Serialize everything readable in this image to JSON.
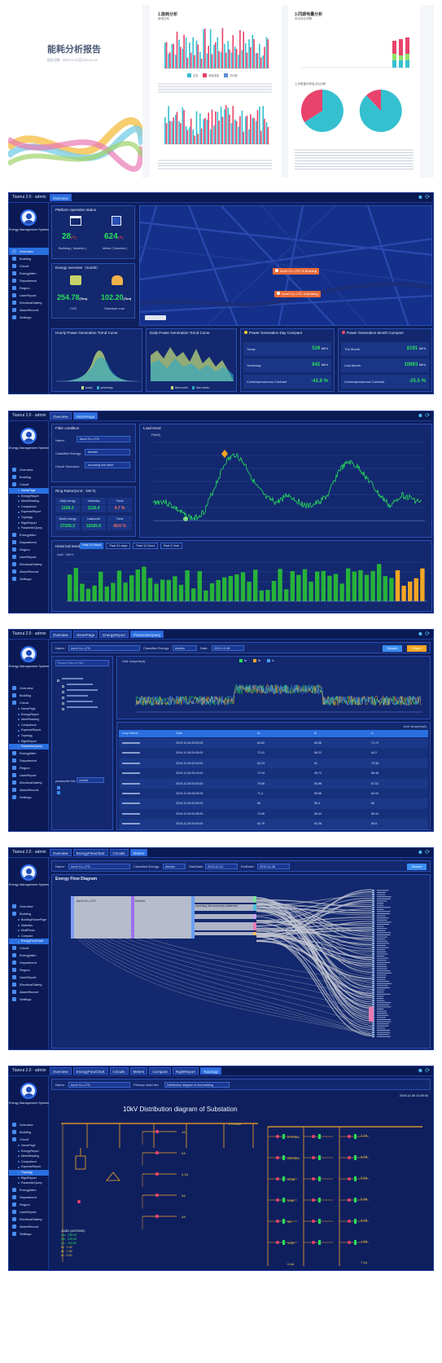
{
  "report": {
    "title": "能耗分析报告",
    "subtitle": "报告日期：2019-10-31至2019-10-31",
    "sec1_title": "1.能耗分析",
    "sec1_sub": "用电分布",
    "sec1_legend": [
      "正常",
      "峰值电量",
      "平均值"
    ],
    "sec3_title": "3.同期电量分析",
    "sec3_sub": "本月对比同期",
    "pie_title": "上月电量分析及占比分析"
  },
  "shell": {
    "brand": "Tianrui 2.0",
    "user": "admin",
    "system": "Energy Management System",
    "icons": [
      "user-icon",
      "refresh-icon"
    ]
  },
  "p1": {
    "tabs": [
      "Overview"
    ],
    "menu": [
      "Overview",
      "Building",
      "Circuit",
      "EnergyMen",
      "Department",
      "Region",
      "UserReport",
      "ElectricalSafety",
      "AlarmRecord",
      "Settings"
    ],
    "status_title": "Platform operation status",
    "building_val": "28",
    "building_unit": "(个)",
    "building_lbl": "Building ( Number )",
    "meter_val": "624",
    "meter_unit": "(个)",
    "meter_lbl": "Meter ( Number )",
    "overview_title": "Energy overview（month）",
    "co2_val": "254.78",
    "co2_unit": "(Ton)",
    "co2_lbl": "CO2",
    "coal_val": "102.20",
    "coal_unit": "(Ton)",
    "coal_lbl": "Standard coal",
    "map_markers": [
      "Acrel Co.,LTD. B Building",
      "Acrel Co.,LTD. A Building"
    ],
    "hourly_title": "Hourly Power Generation Trend Curve",
    "hourly_legend": [
      "today",
      "yesterday"
    ],
    "daily_title": "Daily Power Generation Trend Curve",
    "daily_legend": [
      "this month",
      "last month"
    ],
    "day_cmp_title": "Power Generation Day Compare",
    "month_cmp_title": "Power Generation Month Compare",
    "day_rows": [
      {
        "label": "Today",
        "value": "539",
        "unit": "kW·h"
      },
      {
        "label": "Yesterday",
        "value": "942",
        "unit": "kW·h"
      },
      {
        "label": "Contemporaneous Contrast",
        "value": "-42.8 %",
        "unit": ""
      }
    ],
    "month_rows": [
      {
        "label": "The Month",
        "value": "8191",
        "unit": "kW·h"
      },
      {
        "label": "Last Month",
        "value": "10993",
        "unit": "kW·h"
      },
      {
        "label": "Contemporaneous Contrast",
        "value": "-25.5 %",
        "unit": ""
      }
    ]
  },
  "p2": {
    "tabs": [
      "Overview",
      "HomePage"
    ],
    "menu_top": [
      "Overview",
      "Building",
      "Circuit"
    ],
    "menu_sub": [
      "HomePage",
      "EnergyReport",
      "MeterReading",
      "Comparison",
      "ExpenseReport",
      "Topology",
      "RightReport",
      "ParameterQuery"
    ],
    "menu_bottom": [
      "EnergyMen",
      "Department",
      "Region",
      "UserReport",
      "ElectricalSafety",
      "AlarmRecord",
      "Settings"
    ],
    "filter_title": "Filter condition",
    "name_label": "Name:",
    "name_value": "Acrel Co.,LTD.",
    "energy_label": "Classified Energy:",
    "energy_value": "electric",
    "circuit_label": "Circuit Selection:",
    "circuit_value": "incoming line table",
    "ring_title": "Ring Ration(Unit：kW·h)",
    "ring_head1": [
      "Daily energy",
      "Yesterday",
      "Trend"
    ],
    "ring_val1": [
      "1168.3",
      "1116.4",
      "4.7 %"
    ],
    "ring_head2": [
      "Month energy",
      "Lastmonth",
      "Trend"
    ],
    "ring_val2": [
      "27206.3",
      "18185.8",
      "49.6 %"
    ],
    "load_title": "Load trend",
    "load_unit": "P(kW)",
    "hist_tabs": [
      "Past 24 hours",
      "Past 31 days",
      "Past 12 Mont",
      "Past 3 Year"
    ],
    "hist_title": "Historical trend",
    "hist_unit": "Unit：kW·h"
  },
  "p3": {
    "tabs": [
      "Overview",
      "HomePage",
      "EnergyReport",
      "ParameterQuery"
    ],
    "name_label": "Name:",
    "name_value": "Acrel Co.,LTD.",
    "energy_label": "Classified Energy:",
    "energy_value": "electric",
    "date_label": "Date:",
    "date_value": "2019-12-06",
    "search_btn": "Search",
    "export_btn": "Export",
    "search_placeholder": "Please Enter A Filter",
    "param_label": "parameter list:",
    "param_value": "current",
    "chart_unit": "Unit: Ampere(A)",
    "legend": [
      "Ia",
      "Ib",
      "Ic"
    ],
    "table_unit": "Unit: Ampere(A)",
    "columns": [
      "Loop Name",
      "Date",
      "Ia",
      "Ib",
      "Ic"
    ],
    "rows": [
      [
        "2019-12-06 00:00:00",
        "63.62",
        "63.96",
        "71.74"
      ],
      [
        "2019-12-06 00:05:00",
        "72.51",
        "56.22",
        "64.2"
      ],
      [
        "2019-12-06 00:10:00",
        "64.24",
        "51",
        "72.36"
      ],
      [
        "2019-12-06 00:15:00",
        "72.04",
        "45.72",
        "66.48"
      ],
      [
        "2019-12-06 00:20:00",
        "79.56",
        "50.88",
        "67.02"
      ],
      [
        "2019-12-06 00:25:00",
        "71.4",
        "55.68",
        "62.94"
      ],
      [
        "2019-12-06 00:30:00",
        "66",
        "56.4",
        "66"
      ],
      [
        "2019-12-06 00:35:00",
        "73.56",
        "58.44",
        "66.44"
      ],
      [
        "2019-12-06 00:40:00",
        "63.76",
        "52.08",
        "69.8"
      ]
    ]
  },
  "p4": {
    "tabs": [
      "Overview",
      "EnergyFlowChart",
      "Circuits",
      "Meters"
    ],
    "menu_sub": [
      "BuildingFlowerPage",
      "Statistics",
      "MultiFlows",
      "Compare",
      "EnergyFlowChart"
    ],
    "name_label": "Name:",
    "name_value": "Acrel Co.,LTD.",
    "energy_label": "Classified Energy:",
    "energy_value": "electric",
    "start_label": "StartDate:",
    "start_value": "2019-11-01",
    "end_label": "EndDate:",
    "end_value": "2019-11-28",
    "search_btn": "Search",
    "title": "Energy Flow Diagram",
    "nodes": [
      "Acrel Co.,LTD.",
      "Electric",
      "Incoming line summary statement"
    ]
  },
  "p5": {
    "tabs": [
      "Overview",
      "EnergyFlowChart",
      "Circuits",
      "Meters",
      "Compare",
      "RightReport",
      "Topology"
    ],
    "name_label": "Name:",
    "name_value": "Acrel Co.,LTD.",
    "primary_label": "Primary chart list:",
    "primary_value": "Distribution diagram of new building",
    "timestamp": "2019-12-06 10:39:34",
    "title": "10kV Distribution diagram of Substation",
    "left_labels": [
      "1A",
      "0A",
      "3.1A",
      "0A",
      "0A"
    ],
    "mid_labels": [
      "279.00A",
      "200.00A",
      "223A",
      "1.6A",
      "5A",
      "1.6A",
      "0.6A"
    ],
    "right_labels": [
      "1.1A",
      "4.2A",
      "3.5A",
      "0.5A",
      "4.3A",
      "1.5A",
      "7.1A"
    ],
    "meter_head": "11#B1 (ACR200E)",
    "meter_vals": [
      "Ua：235.00",
      "Ub：235.00",
      "Uc：234.00",
      "Ia：1.00",
      "Ib：1.00",
      "Ic：0.00"
    ]
  }
}
